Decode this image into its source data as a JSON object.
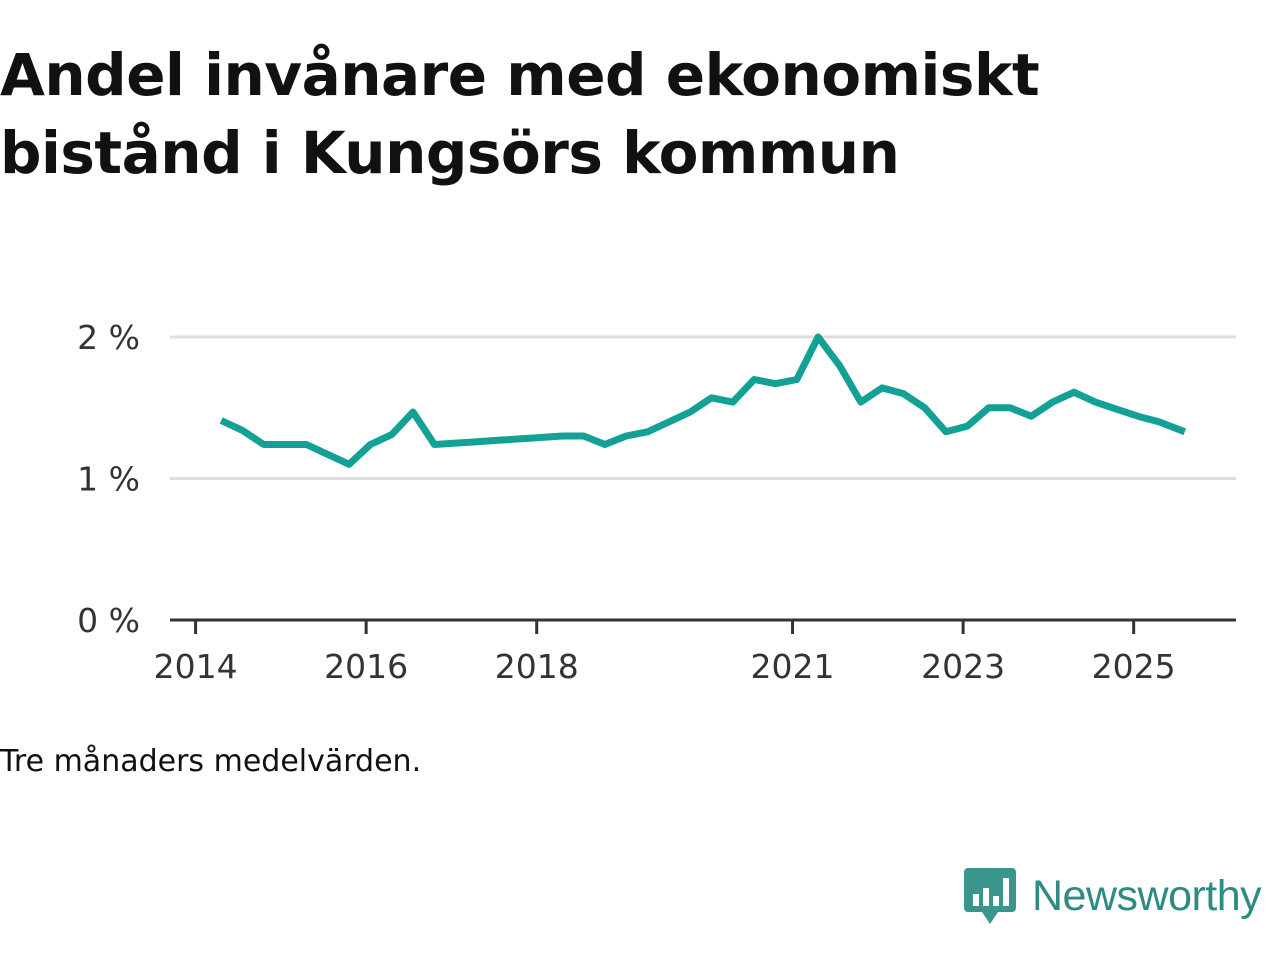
{
  "title": "Andel invånare med ekonomiskt bistånd i Kungsörs kommun",
  "footnote": "Tre månaders medelvärden.",
  "brand": {
    "name": "Newsworthy",
    "logo_icon": "bar-chart-speech-bubble-icon",
    "color": "#2e8b83"
  },
  "colors": {
    "line": "#13a195",
    "grid": "#dddddd",
    "axis": "#333333"
  },
  "chart_data": {
    "type": "line",
    "title": "Andel invånare med ekonomiskt bistånd i Kungsörs kommun",
    "xlabel": "",
    "ylabel": "",
    "x_ticks": [
      "2014",
      "2016",
      "2018",
      "2021",
      "2023",
      "2025"
    ],
    "x_tick_values": [
      2014.0,
      2016.0,
      2018.0,
      2021.0,
      2023.0,
      2025.0
    ],
    "xlim": [
      2013.7,
      2026.2
    ],
    "y_ticks": [
      "0 %",
      "1 %",
      "2 %"
    ],
    "y_tick_values": [
      0,
      1,
      2
    ],
    "ylim": [
      0,
      2
    ],
    "grid": true,
    "series": [
      {
        "name": "Andel invånare med ekonomiskt bistånd",
        "x": [
          2014.3,
          2014.55,
          2014.8,
          2015.05,
          2015.3,
          2015.55,
          2015.8,
          2016.05,
          2016.3,
          2016.55,
          2016.8,
          2017.05,
          2017.3,
          2017.55,
          2017.8,
          2018.05,
          2018.3,
          2018.55,
          2018.8,
          2019.05,
          2019.3,
          2019.55,
          2019.8,
          2020.05,
          2020.3,
          2020.55,
          2020.8,
          2021.05,
          2021.3,
          2021.55,
          2021.8,
          2022.05,
          2022.3,
          2022.55,
          2022.8,
          2023.05,
          2023.3,
          2023.55,
          2023.8,
          2024.05,
          2024.3,
          2024.55,
          2024.8,
          2025.05,
          2025.3,
          2025.6
        ],
        "values": [
          1.41,
          1.34,
          1.24,
          1.24,
          1.24,
          1.17,
          1.1,
          1.24,
          1.31,
          1.47,
          1.24,
          1.25,
          1.26,
          1.27,
          1.28,
          1.29,
          1.3,
          1.3,
          1.24,
          1.3,
          1.33,
          1.4,
          1.47,
          1.57,
          1.54,
          1.7,
          1.67,
          1.7,
          2.0,
          1.8,
          1.54,
          1.64,
          1.6,
          1.5,
          1.33,
          1.37,
          1.5,
          1.5,
          1.44,
          1.54,
          1.61,
          1.54,
          1.49,
          1.44,
          1.4,
          1.33
        ]
      }
    ]
  }
}
